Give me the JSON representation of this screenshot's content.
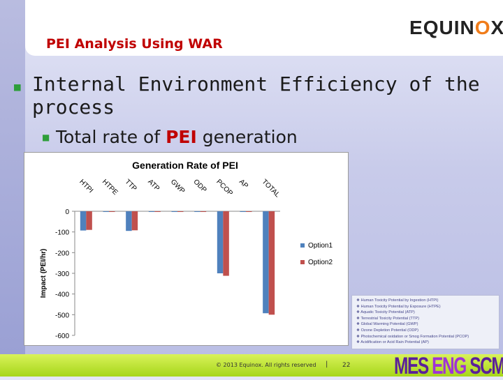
{
  "slide": {
    "title": "PEI Analysis Using WAR",
    "logo_parts": [
      "E",
      "Q",
      "UIN",
      "O",
      "X"
    ],
    "bullet1": "Internal Environment Efficiency of the process",
    "bullet2_prefix": "Total rate of ",
    "bullet2_highlight": "PEI",
    "bullet2_suffix": " generation"
  },
  "footer": {
    "copyright": "© 2013 Equinox. All rights reserved",
    "separator": "|",
    "page_number": "22",
    "brand": [
      "MES",
      "ENG",
      "SCM"
    ]
  },
  "legend_box": {
    "items": [
      "Human Toxicity Potential by Ingestion (HTPI)",
      "Human Toxicity Potential by Exposure (HTPE)",
      "Aquatic Toxicity Potential (ATP)",
      "Terrestrial Toxicity Potential (TTP)",
      "Global Warming Potential (GWP)",
      "Ozone Depletion Potential (ODP)",
      "Photochemical oxidation or Smog Formation Potential (PCOP)",
      "Acidification or Acid Rain Potential (AP)"
    ]
  },
  "chart_data": {
    "type": "bar",
    "title": "Generation Rate of PEI",
    "ylabel": "Impact (PEI/hr)",
    "categories": [
      "HTPI",
      "HTPE",
      "TTP",
      "ATP",
      "GWP",
      "ODP",
      "PCOP",
      "AP",
      "TOTAL"
    ],
    "ylim": [
      -600,
      0
    ],
    "yticks": [
      0,
      -100,
      -200,
      -300,
      -400,
      -500,
      -600
    ],
    "series": [
      {
        "name": "Option1",
        "color": "#4f81bd",
        "values": [
          -93,
          -2,
          -95,
          -1,
          -1,
          0,
          -300,
          0,
          -493
        ]
      },
      {
        "name": "Option2",
        "color": "#c0504d",
        "values": [
          -90,
          -2,
          -92,
          -1,
          -1,
          0,
          -312,
          0,
          -500
        ]
      }
    ],
    "legend": "right",
    "grid": false
  }
}
